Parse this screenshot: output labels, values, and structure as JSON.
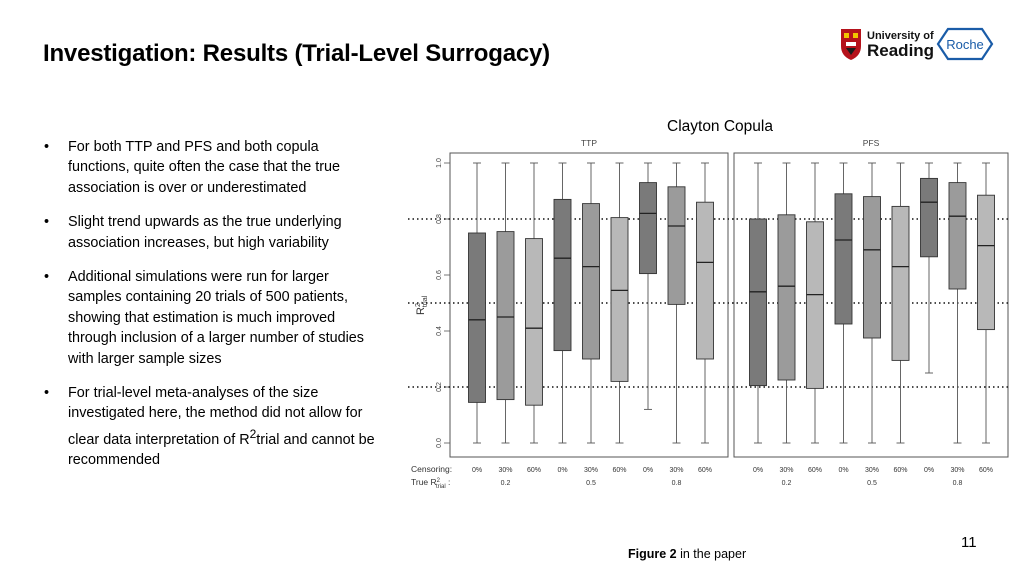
{
  "slide": {
    "title": "Investigation: Results (Trial-Level Surrogacy)",
    "page_number": "11",
    "caption_bold": "Figure 2",
    "caption_rest": " in the paper",
    "chart_heading": "Clayton Copula"
  },
  "logos": {
    "university_line1": "University of",
    "university_line2": "Reading",
    "roche": "Roche"
  },
  "bullets": [
    {
      "text": "For both TTP and PFS and both copula functions, quite often the case that the true association is over or underestimated"
    },
    {
      "text": "Slight trend upwards as the true underlying association increases, but high variability"
    },
    {
      "text": "Additional simulations were run for larger samples containing 20 trials of 500 patients, showing that estimation is much improved through inclusion of a larger number of studies with larger sample sizes"
    },
    {
      "pre": "For trial-level meta-analyses of the size investigated here, the method did not allow for clear data interpretation of R",
      "sup": "2",
      "post": "trial and cannot be recommended"
    }
  ],
  "chart_data": {
    "type": "boxplot",
    "panels": [
      "TTP",
      "PFS"
    ],
    "ylim": [
      0,
      1
    ],
    "yticks": [
      "0.0",
      "0.2",
      "0.4",
      "0.6",
      "0.8",
      "1.0"
    ],
    "ylabel": "R",
    "ylabel_sup": "2",
    "ylabel_sub": "trial",
    "reference_lines": [
      0.2,
      0.5,
      0.8
    ],
    "row_labels": {
      "censoring": "Censoring:",
      "true_r2_prefix": "True R",
      "true_r2_sup": "2",
      "true_r2_sub": "trial"
    },
    "censoring_levels": [
      "0%",
      "30%",
      "60%"
    ],
    "true_r2_levels": [
      "0.2",
      "0.5",
      "0.8"
    ],
    "box_colors": [
      "#7a7a7a",
      "#9b9b9b",
      "#b8b8b8"
    ],
    "series": [
      {
        "panel": "TTP",
        "boxes": [
          {
            "min": 0.0,
            "q1": 0.145,
            "median": 0.44,
            "q3": 0.75,
            "max": 1.0
          },
          {
            "min": 0.0,
            "q1": 0.155,
            "median": 0.45,
            "q3": 0.755,
            "max": 1.0
          },
          {
            "min": 0.0,
            "q1": 0.135,
            "median": 0.41,
            "q3": 0.73,
            "max": 1.0
          },
          {
            "min": 0.0,
            "q1": 0.33,
            "median": 0.66,
            "q3": 0.87,
            "max": 1.0
          },
          {
            "min": 0.0,
            "q1": 0.3,
            "median": 0.63,
            "q3": 0.855,
            "max": 1.0
          },
          {
            "min": 0.0,
            "q1": 0.22,
            "median": 0.545,
            "q3": 0.805,
            "max": 1.0
          },
          {
            "min": 0.12,
            "q1": 0.605,
            "median": 0.82,
            "q3": 0.93,
            "max": 1.0
          },
          {
            "min": 0.0,
            "q1": 0.495,
            "median": 0.775,
            "q3": 0.915,
            "max": 1.0
          },
          {
            "min": 0.0,
            "q1": 0.3,
            "median": 0.645,
            "q3": 0.86,
            "max": 1.0
          }
        ]
      },
      {
        "panel": "PFS",
        "boxes": [
          {
            "min": 0.0,
            "q1": 0.205,
            "median": 0.54,
            "q3": 0.8,
            "max": 1.0
          },
          {
            "min": 0.0,
            "q1": 0.225,
            "median": 0.56,
            "q3": 0.815,
            "max": 1.0
          },
          {
            "min": 0.0,
            "q1": 0.195,
            "median": 0.53,
            "q3": 0.79,
            "max": 1.0
          },
          {
            "min": 0.0,
            "q1": 0.425,
            "median": 0.725,
            "q3": 0.89,
            "max": 1.0
          },
          {
            "min": 0.0,
            "q1": 0.375,
            "median": 0.69,
            "q3": 0.88,
            "max": 1.0
          },
          {
            "min": 0.0,
            "q1": 0.295,
            "median": 0.63,
            "q3": 0.845,
            "max": 1.0
          },
          {
            "min": 0.25,
            "q1": 0.665,
            "median": 0.86,
            "q3": 0.945,
            "max": 1.0
          },
          {
            "min": 0.0,
            "q1": 0.55,
            "median": 0.81,
            "q3": 0.93,
            "max": 1.0
          },
          {
            "min": 0.0,
            "q1": 0.405,
            "median": 0.705,
            "q3": 0.885,
            "max": 1.0
          }
        ]
      }
    ]
  }
}
